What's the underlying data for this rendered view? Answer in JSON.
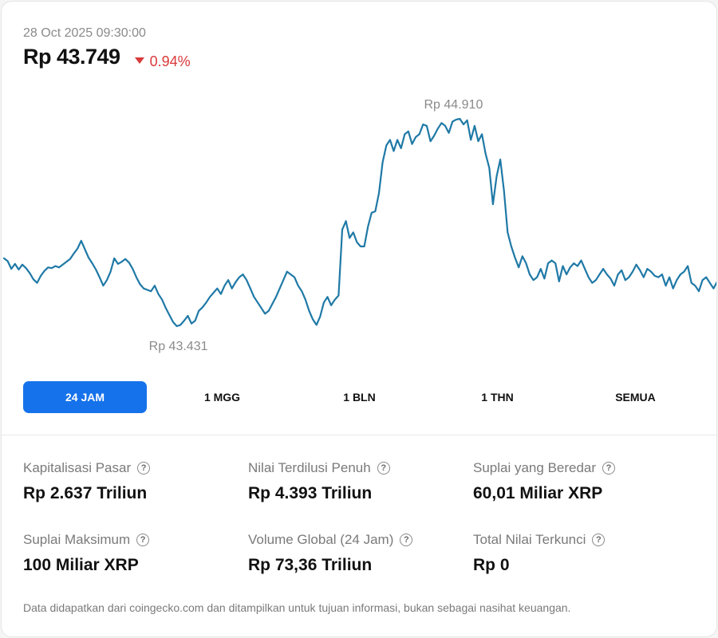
{
  "header": {
    "timestamp": "28 Oct 2025 09:30:00",
    "price": "Rp 43.749",
    "change": "0.94%",
    "change_direction": "down",
    "change_color": "#d93a3a"
  },
  "chart_data": {
    "type": "line",
    "high_label": "Rp 44.910",
    "low_label": "Rp 43.431",
    "high": 44910,
    "low": 43431,
    "line_color": "#1f79a6",
    "grid": false,
    "values": [
      43915,
      43895,
      43840,
      43875,
      43835,
      43870,
      43845,
      43810,
      43765,
      43740,
      43790,
      43825,
      43850,
      43845,
      43860,
      43850,
      43870,
      43890,
      43910,
      43950,
      43985,
      44040,
      43980,
      43920,
      43880,
      43835,
      43780,
      43720,
      43760,
      43820,
      43915,
      43875,
      43890,
      43910,
      43885,
      43840,
      43780,
      43730,
      43700,
      43690,
      43680,
      43720,
      43660,
      43620,
      43560,
      43510,
      43460,
      43431,
      43440,
      43470,
      43505,
      43450,
      43470,
      43540,
      43565,
      43600,
      43640,
      43670,
      43700,
      43660,
      43720,
      43760,
      43700,
      43745,
      43780,
      43800,
      43760,
      43700,
      43640,
      43600,
      43560,
      43520,
      43540,
      43590,
      43640,
      43700,
      43760,
      43820,
      43800,
      43780,
      43720,
      43680,
      43620,
      43540,
      43480,
      43440,
      43500,
      43600,
      43640,
      43580,
      43620,
      43650,
      44120,
      44180,
      44060,
      44100,
      44030,
      44000,
      44000,
      44140,
      44240,
      44250,
      44380,
      44600,
      44720,
      44760,
      44680,
      44760,
      44700,
      44800,
      44820,
      44730,
      44780,
      44800,
      44870,
      44860,
      44750,
      44790,
      44840,
      44880,
      44860,
      44810,
      44890,
      44905,
      44910,
      44870,
      44900,
      44760,
      44860,
      44750,
      44800,
      44660,
      44560,
      44300,
      44500,
      44620,
      44400,
      44100,
      44000,
      43920,
      43850,
      43930,
      43880,
      43800,
      43760,
      43780,
      43840,
      43770,
      43880,
      43900,
      43880,
      43750,
      43860,
      43800,
      43850,
      43880,
      43860,
      43900,
      43840,
      43780,
      43740,
      43760,
      43800,
      43840,
      43800,
      43770,
      43720,
      43800,
      43830,
      43760,
      43780,
      43820,
      43870,
      43830,
      43780,
      43840,
      43820,
      43790,
      43780,
      43800,
      43720,
      43780,
      43700,
      43760,
      43800,
      43820,
      43860,
      43740,
      43720,
      43680,
      43760,
      43780,
      43740,
      43700,
      43749
    ]
  },
  "tabs": [
    {
      "label": "24 JAM",
      "active": true
    },
    {
      "label": "1 MGG",
      "active": false
    },
    {
      "label": "1 BLN",
      "active": false
    },
    {
      "label": "1 THN",
      "active": false
    },
    {
      "label": "SEMUA",
      "active": false
    }
  ],
  "stats": [
    {
      "label": "Kapitalisasi Pasar",
      "value": "Rp 2.637 Triliun"
    },
    {
      "label": "Nilai Terdilusi Penuh",
      "value": "Rp 4.393 Triliun"
    },
    {
      "label": "Suplai yang Beredar",
      "value": "60,01 Miliar XRP"
    },
    {
      "label": "Suplai Maksimum",
      "value": "100 Miliar XRP"
    },
    {
      "label": "Volume Global (24 Jam)",
      "value": "Rp 73,36 Triliun"
    },
    {
      "label": "Total Nilai Terkunci",
      "value": "Rp 0"
    }
  ],
  "info_icon": "question-circle-icon",
  "footer_note": "Data didapatkan dari coingecko.com dan ditampilkan untuk tujuan informasi, bukan sebagai nasihat keuangan.",
  "accent_color": "#1672ea"
}
